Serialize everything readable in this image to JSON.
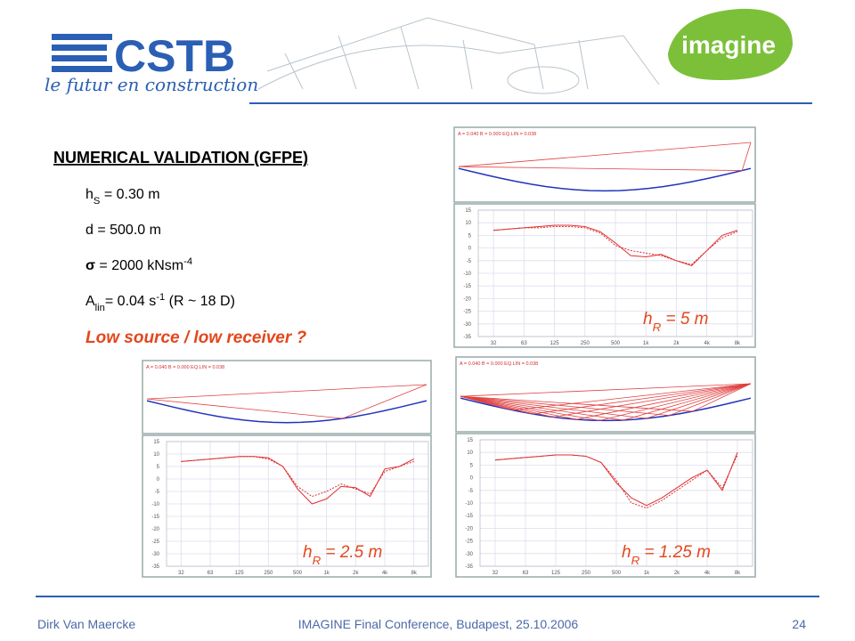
{
  "header": {
    "logo": "CSTB",
    "tagline": "le futur en construction",
    "badge": "imagine"
  },
  "title": "NUMERICAL VALIDATION (GFPE)",
  "params": [
    [
      {
        "t": "h"
      },
      {
        "t": "S",
        "s": "sub"
      },
      {
        "t": " = 0.30 m"
      }
    ],
    [
      {
        "t": " d = 500.0 m"
      }
    ],
    [
      {
        "t": "σ",
        "s": "bold"
      },
      {
        "t": " = 2000 kNsm"
      },
      {
        "t": "-4",
        "s": "sup"
      }
    ],
    [
      {
        "t": "A"
      },
      {
        "t": "lin",
        "s": "sub"
      },
      {
        "t": "= 0.04 s"
      },
      {
        "t": "-1",
        "s": "sup"
      },
      {
        "t": " (R ~ 18 D)"
      }
    ]
  ],
  "question": "Low source / low receiver ?",
  "axes": {
    "xlim": [
      -0.5,
      8.5
    ],
    "ylim": [
      -35,
      15
    ],
    "yticks": [
      15,
      10,
      5,
      0,
      -5,
      -10,
      -15,
      -20,
      -25,
      -30,
      -35
    ],
    "xticks": [
      {
        "value": 0,
        "label": "32"
      },
      {
        "value": 1,
        "label": "63"
      },
      {
        "value": 2,
        "label": "125"
      },
      {
        "value": 3,
        "label": "250"
      },
      {
        "value": 4,
        "label": "500"
      },
      {
        "value": 5,
        "label": "1k"
      },
      {
        "value": 6,
        "label": "2k"
      },
      {
        "value": 7,
        "label": "4k"
      },
      {
        "value": 8,
        "label": "8k"
      }
    ],
    "x": [
      0,
      0.5,
      1,
      1.5,
      2,
      2.5,
      3,
      3.5,
      4,
      4.5,
      5,
      5.5,
      6,
      6.5,
      7,
      7.5,
      8
    ]
  },
  "panels": [
    {
      "ray_label": "A = 0.040 B = 0.000 EQ.LIN = 0.038",
      "label": [
        {
          "t": "h"
        },
        {
          "t": "R",
          "s": "sub"
        },
        {
          "t": " = 5 m"
        }
      ],
      "chart": {
        "type": "line",
        "series": [
          {
            "color": "#e03030",
            "style": "solid",
            "values": [
              7,
              7.5,
              8,
              8.5,
              9,
              9,
              8.5,
              6.5,
              2,
              -3,
              -3.5,
              -2.5,
              -5,
              -7,
              -1,
              5,
              7
            ]
          },
          {
            "color": "#e03030",
            "style": "dotted",
            "values": [
              7,
              7.5,
              8,
              8,
              8.5,
              8.5,
              8,
              6,
              1,
              -1,
              -2,
              -3,
              -5,
              -6.5,
              -1,
              4,
              6.5
            ]
          }
        ]
      }
    },
    {
      "ray_label": "A = 0.040 B = 0.000 EQ.LIN = 0.038",
      "label": [
        {
          "t": "h"
        },
        {
          "t": "R",
          "s": "sub"
        },
        {
          "t": " = 2.5 m"
        }
      ],
      "chart": {
        "type": "line",
        "series": [
          {
            "color": "#e03030",
            "style": "solid",
            "values": [
              7,
              7.5,
              8,
              8.5,
              9,
              9,
              8.5,
              5,
              -4,
              -10,
              -8,
              -3,
              -3.5,
              -7,
              4,
              5,
              8
            ]
          },
          {
            "color": "#e03030",
            "style": "dotted",
            "values": [
              7,
              7.5,
              8,
              8.5,
              9,
              9,
              8,
              5,
              -3,
              -7,
              -5,
              -2,
              -4,
              -6,
              3,
              5,
              7
            ]
          }
        ]
      }
    },
    {
      "ray_label": "A = 0.040 B = 0.000 EQ.LIN = 0.038",
      "label": [
        {
          "t": "h"
        },
        {
          "t": "R",
          "s": "sub"
        },
        {
          "t": " = 1.25 m"
        }
      ],
      "chart": {
        "type": "line",
        "series": [
          {
            "color": "#e03030",
            "style": "solid",
            "values": [
              7,
              7.5,
              8,
              8.5,
              9,
              9,
              8.5,
              6,
              -2,
              -8,
              -11,
              -8,
              -4,
              0,
              3,
              -5,
              10
            ]
          },
          {
            "color": "#e03030",
            "style": "dotted",
            "values": [
              7,
              7.5,
              8,
              8.5,
              9,
              9,
              8.5,
              6,
              -1,
              -10,
              -12,
              -9,
              -5,
              -1,
              3,
              -4,
              9
            ]
          }
        ]
      }
    }
  ],
  "footer": {
    "author": "Dirk Van Maercke",
    "event": "IMAGINE Final Conference, Budapest, 25.10.2006",
    "page": "24"
  }
}
